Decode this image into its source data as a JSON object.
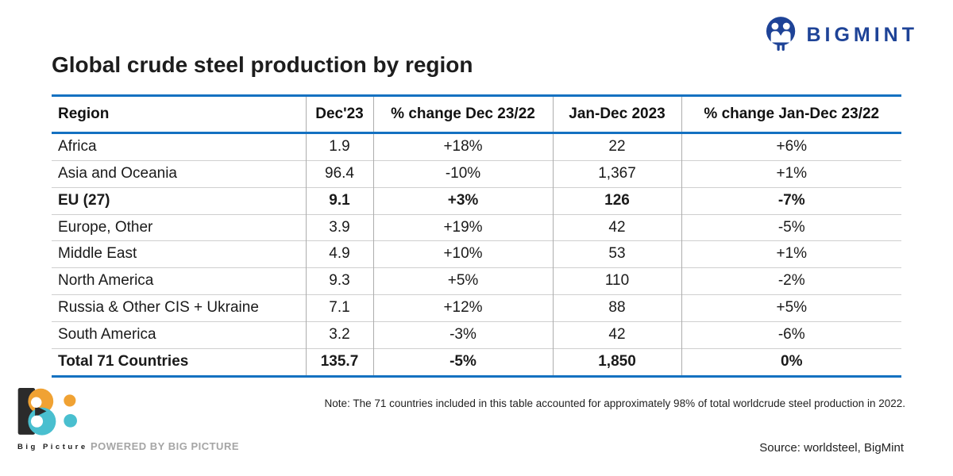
{
  "header": {
    "brand": "BIGMINT"
  },
  "title": "Global crude steel production by region",
  "table": {
    "columns": [
      "Region",
      "Dec'23",
      "% change Dec 23/22",
      "Jan-Dec 2023",
      "% change Jan-Dec 23/22"
    ],
    "rows": [
      {
        "region": "Africa",
        "dec23": "1.9",
        "chg_dec": "+18%",
        "chg_dec_tone": "pos",
        "jandec": "22",
        "chg_jd": "+6%",
        "chg_jd_tone": "pos",
        "bold": false
      },
      {
        "region": "Asia and Oceania",
        "dec23": "96.4",
        "chg_dec": "-10%",
        "chg_dec_tone": "neg",
        "jandec": "1,367",
        "chg_jd": "+1%",
        "chg_jd_tone": "pos",
        "bold": false
      },
      {
        "region": "EU (27)",
        "dec23": "9.1",
        "chg_dec": "+3%",
        "chg_dec_tone": "pos",
        "jandec": "126",
        "chg_jd": "-7%",
        "chg_jd_tone": "neg",
        "bold": true
      },
      {
        "region": "Europe, Other",
        "dec23": "3.9",
        "chg_dec": "+19%",
        "chg_dec_tone": "pos",
        "jandec": "42",
        "chg_jd": "-5%",
        "chg_jd_tone": "neg",
        "bold": false
      },
      {
        "region": "Middle East",
        "dec23": "4.9",
        "chg_dec": "+10%",
        "chg_dec_tone": "pos",
        "jandec": "53",
        "chg_jd": "+1%",
        "chg_jd_tone": "pos",
        "bold": false
      },
      {
        "region": "North America",
        "dec23": "9.3",
        "chg_dec": "+5%",
        "chg_dec_tone": "pos",
        "jandec": "110",
        "chg_jd": "-2%",
        "chg_jd_tone": "neg",
        "bold": false
      },
      {
        "region": "Russia & Other CIS + Ukraine",
        "dec23": "7.1",
        "chg_dec": "+12%",
        "chg_dec_tone": "pos",
        "jandec": "88",
        "chg_jd": "+5%",
        "chg_jd_tone": "pos",
        "bold": false
      },
      {
        "region": "South America",
        "dec23": "3.2",
        "chg_dec": "-3%",
        "chg_dec_tone": "neg",
        "jandec": "42",
        "chg_jd": "-6%",
        "chg_jd_tone": "neg",
        "bold": false
      },
      {
        "region": "Total 71 Countries",
        "dec23": "135.7",
        "chg_dec": "-5%",
        "chg_dec_tone": "neg",
        "jandec": "1,850",
        "chg_jd": "0%",
        "chg_jd_tone": "neutral",
        "bold": true
      }
    ]
  },
  "note": "Note: The 71 countries included in this table accounted for approximately 98% of total worldcrude steel production in 2022.",
  "footer": {
    "big_picture_label": "Big Picture",
    "powered_by": "POWERED BY BIG PICTURE",
    "source": "Source: worldsteel, BigMint"
  },
  "colors": {
    "positive": "#08a64f",
    "negative": "#e9242a",
    "table_border_blue": "#1471c1",
    "brand_navy": "#1e4397",
    "bp_orange": "#f0a233",
    "bp_teal": "#49bfcf",
    "bp_black": "#2b2b2b"
  },
  "chart_data": {
    "type": "table",
    "title": "Global crude steel production by region",
    "columns": [
      "Region",
      "Dec'23",
      "% change Dec 23/22",
      "Jan-Dec 2023",
      "% change Jan-Dec 23/22"
    ],
    "rows": [
      [
        "Africa",
        1.9,
        "+18%",
        22,
        "+6%"
      ],
      [
        "Asia and Oceania",
        96.4,
        "-10%",
        1367,
        "+1%"
      ],
      [
        "EU (27)",
        9.1,
        "+3%",
        126,
        "-7%"
      ],
      [
        "Europe, Other",
        3.9,
        "+19%",
        42,
        "-5%"
      ],
      [
        "Middle East",
        4.9,
        "+10%",
        53,
        "+1%"
      ],
      [
        "North America",
        9.3,
        "+5%",
        110,
        "-2%"
      ],
      [
        "Russia & Other CIS + Ukraine",
        7.1,
        "+12%",
        88,
        "+5%"
      ],
      [
        "South America",
        3.2,
        "-3%",
        42,
        "-6%"
      ],
      [
        "Total 71 Countries",
        135.7,
        "-5%",
        1850,
        "0%"
      ]
    ],
    "value_color_rule": "positive % green, negative % red, zero black",
    "note": "Note: The 71 countries included in this table accounted for approximately 98% of total worldcrude steel production in 2022.",
    "source": "Source: worldsteel, BigMint"
  }
}
